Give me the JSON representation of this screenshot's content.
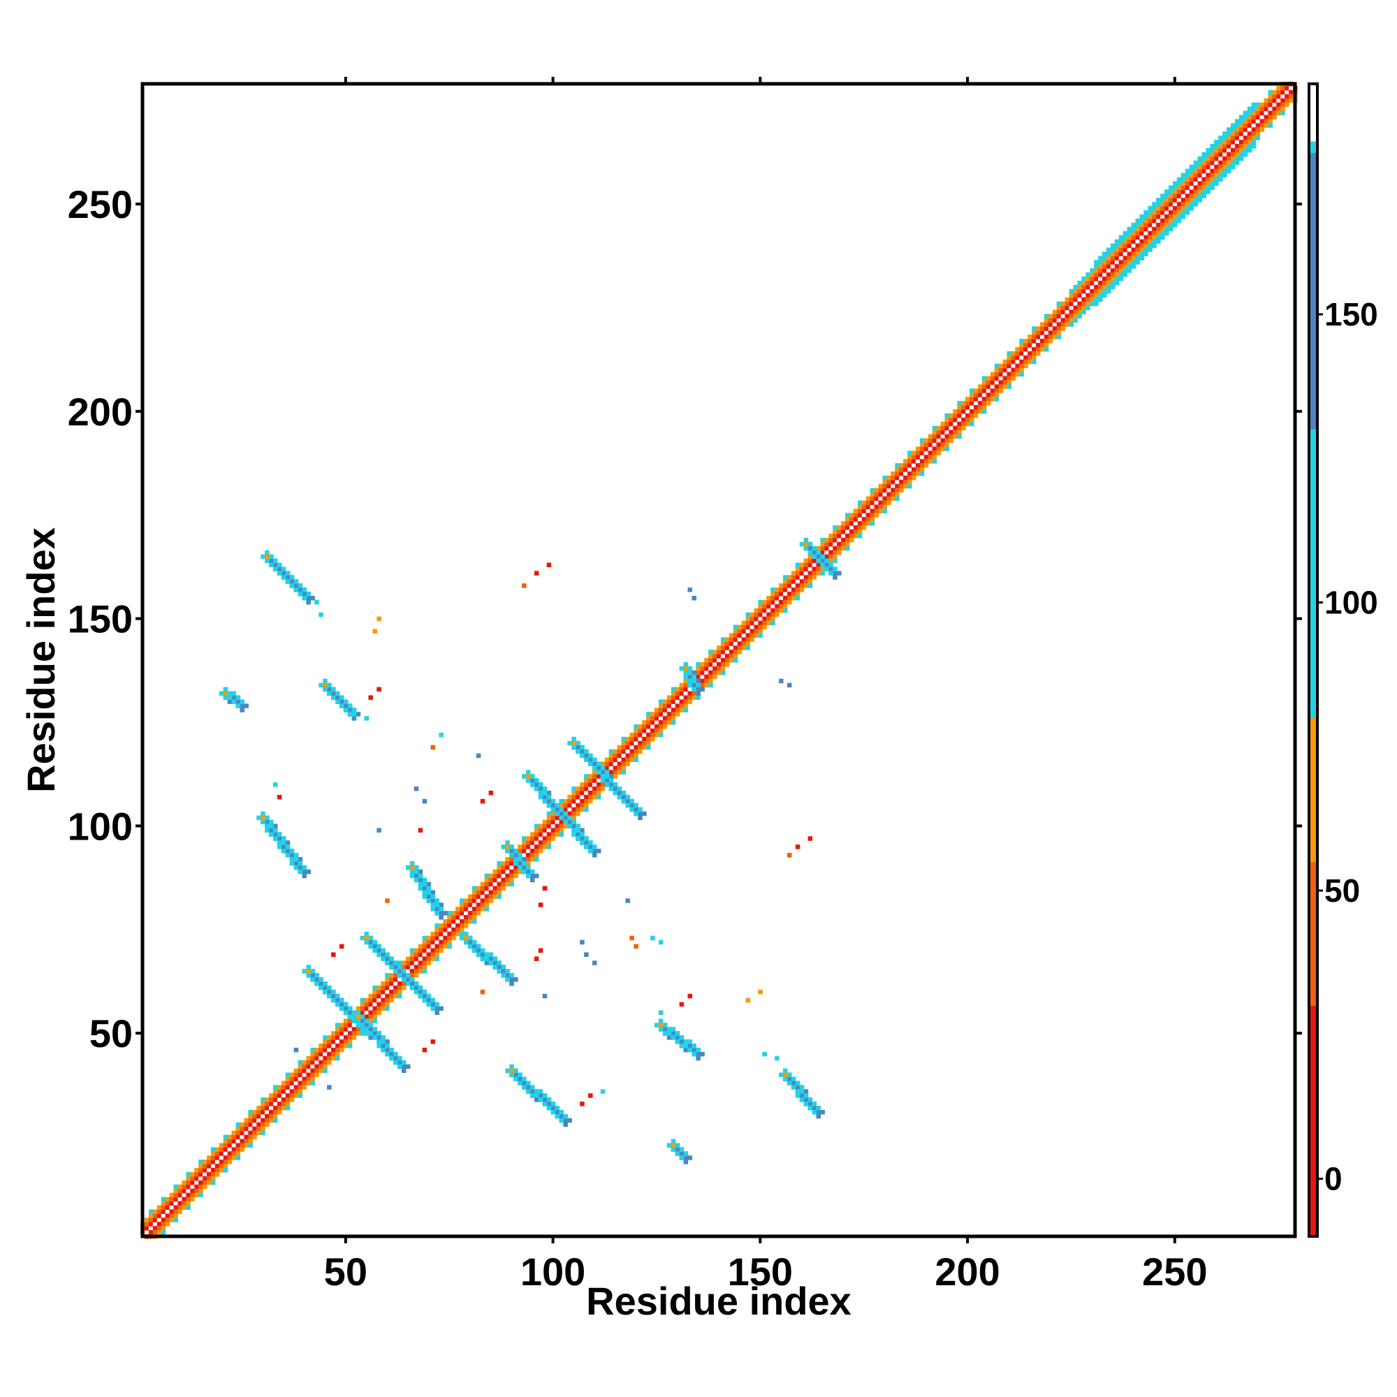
{
  "chart_data": {
    "type": "heatmap",
    "title": "",
    "xlabel": "Residue index",
    "ylabel": "Residue index",
    "xlim": [
      1,
      279
    ],
    "ylim": [
      1,
      279
    ],
    "x_ticks": [
      50,
      100,
      150,
      200,
      250
    ],
    "y_ticks": [
      50,
      100,
      150,
      200,
      250
    ],
    "grid": false,
    "colorbar": {
      "range": [
        -10,
        190
      ],
      "ticks": [
        0,
        50,
        100,
        150
      ],
      "bins": [
        {
          "from": -10,
          "to": 30,
          "color": "#e8170c"
        },
        {
          "from": 30,
          "to": 55,
          "color": "#f0620c"
        },
        {
          "from": 55,
          "to": 80,
          "color": "#f59a0a"
        },
        {
          "from": 80,
          "to": 180,
          "color": "#22d3e8"
        },
        {
          "from": 180,
          "to": 190,
          "color": "#ffffff"
        }
      ],
      "upper_bins": [
        {
          "from": 130,
          "to": 178,
          "color": "#4a86c2"
        }
      ]
    },
    "diagonal": {
      "from": 1,
      "to": 279
    },
    "stripes": [
      {
        "x0": 31,
        "y0": 165,
        "x1": 41,
        "y1": 155,
        "value": 170
      },
      {
        "x0": 30,
        "y0": 102,
        "x1": 40,
        "y1": 89,
        "value": 170
      },
      {
        "x0": 45,
        "y0": 134,
        "x1": 52,
        "y1": 127,
        "value": 170
      },
      {
        "x0": 21,
        "y0": 132,
        "x1": 25,
        "y1": 129,
        "value": 170
      },
      {
        "x0": 41,
        "y0": 65,
        "x1": 56,
        "y1": 50,
        "value": 170
      },
      {
        "x0": 55,
        "y0": 73,
        "x1": 72,
        "y1": 56,
        "value": 170
      },
      {
        "x0": 53,
        "y0": 54,
        "x1": 64,
        "y1": 42,
        "value": 170
      },
      {
        "x0": 66,
        "y0": 90,
        "x1": 73,
        "y1": 79,
        "value": 170
      },
      {
        "x0": 79,
        "y0": 73,
        "x1": 90,
        "y1": 63,
        "value": 170
      },
      {
        "x0": 94,
        "y0": 112,
        "x1": 110,
        "y1": 94,
        "value": 170
      },
      {
        "x0": 105,
        "y0": 120,
        "x1": 121,
        "y1": 103,
        "value": 170
      },
      {
        "x0": 90,
        "y0": 41,
        "x1": 103,
        "y1": 29,
        "value": 170
      },
      {
        "x0": 126,
        "y0": 52,
        "x1": 135,
        "y1": 45,
        "value": 170
      },
      {
        "x0": 156,
        "y0": 40,
        "x1": 164,
        "y1": 31,
        "value": 170
      },
      {
        "x0": 129,
        "y0": 23,
        "x1": 132,
        "y1": 20,
        "value": 170
      },
      {
        "x0": 161,
        "y0": 168,
        "x1": 168,
        "y1": 161,
        "value": 170
      },
      {
        "x0": 89,
        "y0": 95,
        "x1": 95,
        "y1": 88,
        "value": 170
      },
      {
        "x0": 132,
        "y0": 138,
        "x1": 135,
        "y1": 133,
        "value": 170
      }
    ],
    "scatter": [
      {
        "x": 99,
        "y": 163,
        "value": 10
      },
      {
        "x": 96,
        "y": 161,
        "value": 10
      },
      {
        "x": 93,
        "y": 158,
        "value": 40
      },
      {
        "x": 58,
        "y": 150,
        "value": 60
      },
      {
        "x": 57,
        "y": 147,
        "value": 60
      },
      {
        "x": 58,
        "y": 133,
        "value": 10
      },
      {
        "x": 56,
        "y": 131,
        "value": 10
      },
      {
        "x": 73,
        "y": 122,
        "value": 90
      },
      {
        "x": 71,
        "y": 119,
        "value": 30
      },
      {
        "x": 82,
        "y": 117,
        "value": 170
      },
      {
        "x": 85,
        "y": 108,
        "value": 10
      },
      {
        "x": 83,
        "y": 106,
        "value": 10
      },
      {
        "x": 67,
        "y": 109,
        "value": 170
      },
      {
        "x": 69,
        "y": 106,
        "value": 170
      },
      {
        "x": 34,
        "y": 107,
        "value": 10
      },
      {
        "x": 33,
        "y": 110,
        "value": 90
      },
      {
        "x": 68,
        "y": 99,
        "value": 10
      },
      {
        "x": 58,
        "y": 99,
        "value": 170
      },
      {
        "x": 98,
        "y": 85,
        "value": 10
      },
      {
        "x": 97,
        "y": 81,
        "value": 10
      },
      {
        "x": 118,
        "y": 82,
        "value": 170
      },
      {
        "x": 60,
        "y": 82,
        "value": 40
      },
      {
        "x": 49,
        "y": 71,
        "value": 10
      },
      {
        "x": 47,
        "y": 69,
        "value": 10
      },
      {
        "x": 97,
        "y": 70,
        "value": 10
      },
      {
        "x": 96,
        "y": 68,
        "value": 10
      },
      {
        "x": 107,
        "y": 72,
        "value": 170
      },
      {
        "x": 108,
        "y": 69,
        "value": 170
      },
      {
        "x": 110,
        "y": 67,
        "value": 170
      },
      {
        "x": 120,
        "y": 71,
        "value": 30
      },
      {
        "x": 119,
        "y": 73,
        "value": 30
      },
      {
        "x": 124,
        "y": 73,
        "value": 90
      },
      {
        "x": 126,
        "y": 72,
        "value": 90
      },
      {
        "x": 83,
        "y": 60,
        "value": 40
      },
      {
        "x": 98,
        "y": 59,
        "value": 170
      },
      {
        "x": 133,
        "y": 59,
        "value": 10
      },
      {
        "x": 131,
        "y": 57,
        "value": 10
      },
      {
        "x": 147,
        "y": 58,
        "value": 60
      },
      {
        "x": 150,
        "y": 60,
        "value": 60
      },
      {
        "x": 126,
        "y": 55,
        "value": 90
      },
      {
        "x": 71,
        "y": 48,
        "value": 10
      },
      {
        "x": 69,
        "y": 46,
        "value": 10
      },
      {
        "x": 38,
        "y": 46,
        "value": 170
      },
      {
        "x": 46,
        "y": 37,
        "value": 170
      },
      {
        "x": 151,
        "y": 45,
        "value": 90
      },
      {
        "x": 154,
        "y": 44,
        "value": 90
      },
      {
        "x": 109,
        "y": 35,
        "value": 10
      },
      {
        "x": 107,
        "y": 33,
        "value": 10
      },
      {
        "x": 112,
        "y": 36,
        "value": 90
      },
      {
        "x": 162,
        "y": 97,
        "value": 10
      },
      {
        "x": 159,
        "y": 95,
        "value": 10
      },
      {
        "x": 157,
        "y": 93,
        "value": 30
      },
      {
        "x": 155,
        "y": 135,
        "value": 170
      },
      {
        "x": 157,
        "y": 134,
        "value": 170
      },
      {
        "x": 133,
        "y": 157,
        "value": 170
      },
      {
        "x": 134,
        "y": 155,
        "value": 170
      },
      {
        "x": 44,
        "y": 151,
        "value": 90
      },
      {
        "x": 43,
        "y": 154,
        "value": 90
      },
      {
        "x": 55,
        "y": 126,
        "value": 90
      },
      {
        "x": 52,
        "y": 127,
        "value": 90
      }
    ]
  }
}
